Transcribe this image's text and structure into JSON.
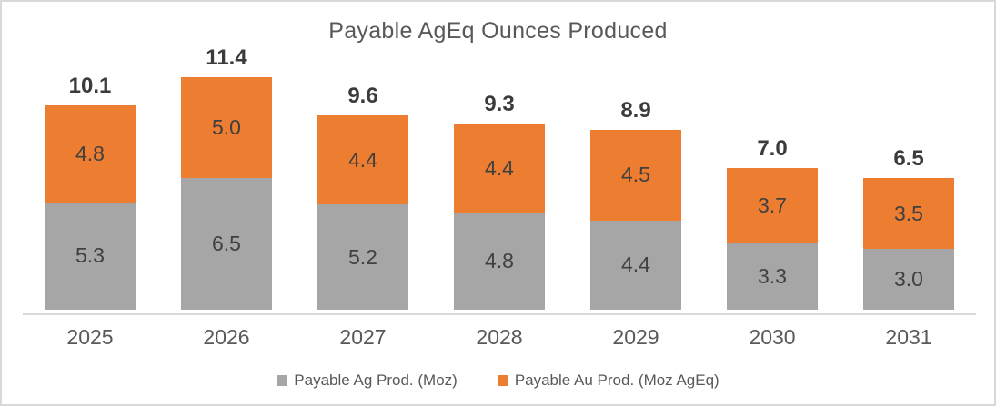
{
  "title": "Payable AgEq Ounces Produced",
  "colors": {
    "ag_gray": "#A6A6A6",
    "au_orange": "#ED7D31",
    "axis_line": "#D9D9D9",
    "title_text": "#595959",
    "data_label_text": "#404040",
    "total_label_text": "#3B3B3B"
  },
  "chart_data": {
    "type": "bar",
    "stacked": true,
    "title": "Payable AgEq Ounces Produced",
    "xlabel": "",
    "ylabel": "",
    "categories": [
      "2025",
      "2026",
      "2027",
      "2028",
      "2029",
      "2030",
      "2031"
    ],
    "series": [
      {
        "name": "Payable Ag Prod. (Moz)",
        "color": "#A6A6A6",
        "values": [
          5.3,
          6.5,
          5.2,
          4.8,
          4.4,
          3.3,
          3.0
        ]
      },
      {
        "name": "Payable Au Prod. (Moz AgEq)",
        "color": "#ED7D31",
        "values": [
          4.8,
          5.0,
          4.4,
          4.4,
          4.5,
          3.7,
          3.5
        ]
      }
    ],
    "total_labels": [
      "10.1",
      "11.4",
      "9.6",
      "9.3",
      "8.9",
      "7.0",
      "6.5"
    ],
    "ylim": [
      0,
      12.5
    ],
    "grid": false,
    "y_axis_visible": false,
    "legend_position": "bottom"
  }
}
